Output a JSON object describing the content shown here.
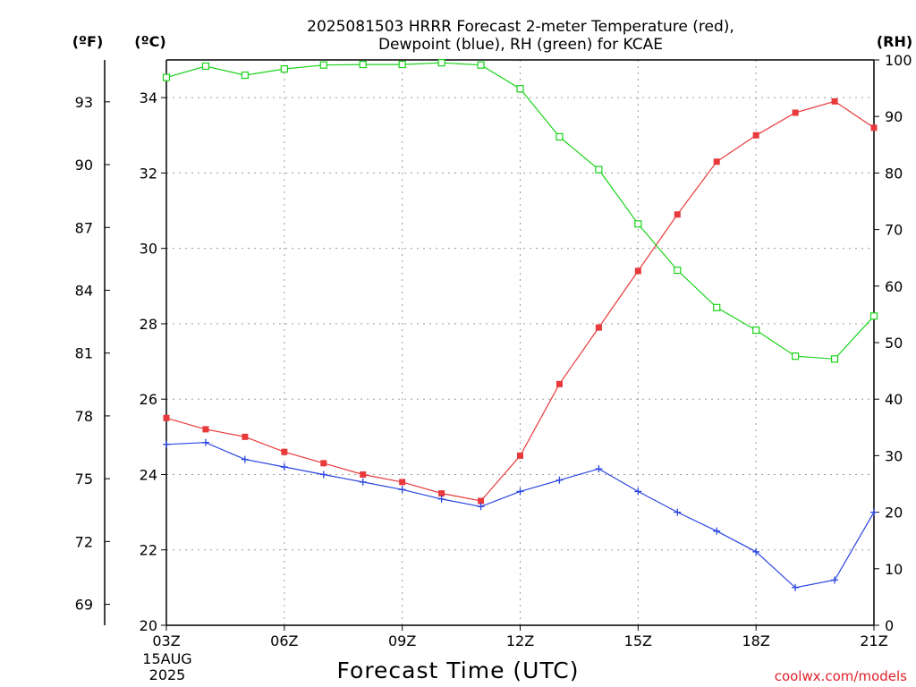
{
  "title_lines": [
    "2025081503 HRRR Forecast 2-meter Temperature (red),",
    "Dewpoint (blue), RH (green) for KCAE"
  ],
  "units": {
    "fahrenheit": "(ºF)",
    "celsius": "(ºC)",
    "rh": "(RH)"
  },
  "start_label": [
    "03Z",
    "15AUG",
    "2025"
  ],
  "credit": "coolwx.com/models",
  "colors": {
    "temperature": "#e8393b",
    "dewpoint": "#2a45e0",
    "rh": "#19d419"
  },
  "chart_data": {
    "type": "line",
    "title": "2025081503 HRRR Forecast 2-meter Temperature (red), Dewpoint (blue), RH (green) for KCAE",
    "xlabel": "Forecast Time (UTC)",
    "x_tick_labels": [
      "03Z",
      "06Z",
      "09Z",
      "12Z",
      "15Z",
      "18Z",
      "21Z"
    ],
    "x_hours": [
      3,
      4,
      5,
      6,
      7,
      8,
      9,
      10,
      11,
      12,
      13,
      14,
      15,
      16,
      17,
      18,
      19,
      20,
      21
    ],
    "xlim": [
      3,
      21
    ],
    "celsius_axis": {
      "label": "(ºC)",
      "range": [
        20,
        35
      ],
      "ticks": [
        20,
        22,
        24,
        26,
        28,
        30,
        32,
        34
      ]
    },
    "fahrenheit_axis": {
      "label": "(ºF)",
      "ticks": [
        69,
        72,
        75,
        78,
        81,
        84,
        87,
        90,
        93
      ]
    },
    "rh_axis": {
      "label": "(RH)",
      "range": [
        0,
        100
      ],
      "ticks": [
        0,
        10,
        20,
        30,
        40,
        50,
        60,
        70,
        80,
        90,
        100
      ]
    },
    "grid": true,
    "series": [
      {
        "name": "Temperature",
        "axis": "celsius",
        "marker": "filled-square",
        "values": [
          25.5,
          25.2,
          25.0,
          24.6,
          24.3,
          24.0,
          23.8,
          23.5,
          23.3,
          24.5,
          26.4,
          27.9,
          29.4,
          30.9,
          32.3,
          33.0,
          33.6,
          33.9,
          33.2
        ]
      },
      {
        "name": "Dewpoint",
        "axis": "celsius",
        "marker": "plus",
        "values": [
          24.8,
          24.85,
          24.4,
          24.2,
          24.0,
          23.8,
          23.6,
          23.35,
          23.15,
          23.55,
          23.85,
          24.15,
          23.55,
          23.0,
          22.5,
          21.95,
          21.0,
          21.2,
          23.0
        ]
      },
      {
        "name": "RH",
        "axis": "rh",
        "marker": "open-square",
        "values": [
          96.9,
          98.9,
          97.3,
          98.4,
          99.1,
          99.2,
          99.2,
          99.5,
          99.1,
          94.9,
          86.4,
          80.6,
          71.0,
          62.8,
          56.2,
          52.2,
          47.6,
          47.1,
          54.7
        ]
      }
    ]
  }
}
